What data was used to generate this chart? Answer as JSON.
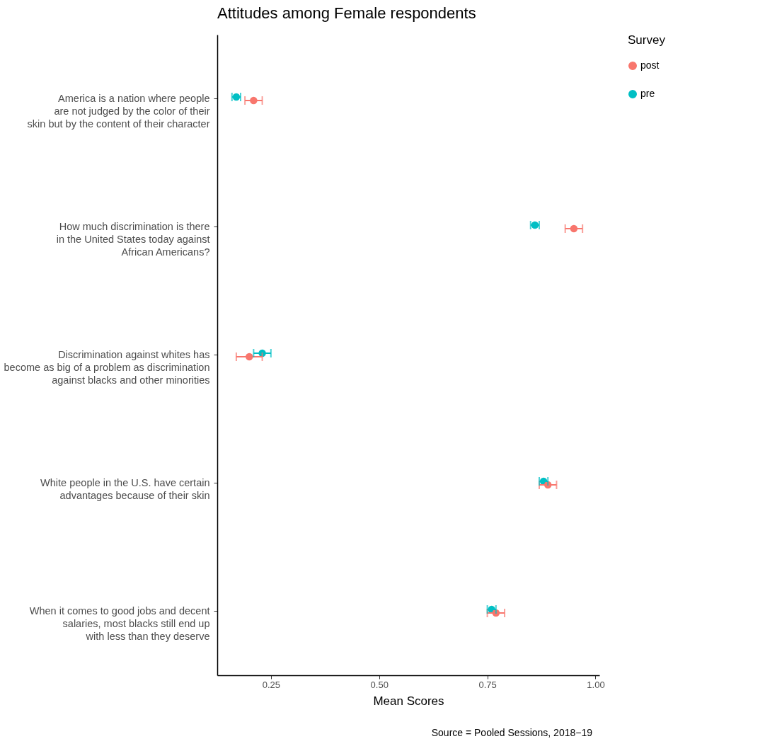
{
  "chart_data": {
    "type": "scatter",
    "orientation": "horizontal",
    "title": "Attitudes among Female respondents",
    "xlabel": "Mean Scores",
    "legend_title": "Survey",
    "legend": "right",
    "grid": false,
    "marker": "circle",
    "categories": [
      "America is a nation where people\nare not judged by the color of their\nskin but by the content of their character",
      "How much discrimination is there\nin the United States today against\nAfrican Americans?",
      "Discrimination against whites has\nbecome as big of a problem as discrimination\nagainst blacks and other minorities",
      "White people in the U.S. have certain\nadvantages because of their skin",
      "When it comes to good jobs and decent\nsalaries, most blacks still end up\nwith less than they deserve"
    ],
    "xlim": [
      0.126,
      1.009
    ],
    "xticks": [
      {
        "value": 0.25,
        "label": "0.25"
      },
      {
        "value": 0.5,
        "label": "0.50"
      },
      {
        "value": 0.75,
        "label": "0.75"
      },
      {
        "value": 1.0,
        "label": "1.00"
      }
    ],
    "series": [
      {
        "name": "post",
        "color": "#f8766d",
        "values": [
          0.21,
          0.95,
          0.2,
          0.89,
          0.77
        ],
        "errors": [
          0.02,
          0.02,
          0.03,
          0.02,
          0.02
        ]
      },
      {
        "name": "pre",
        "color": "#00bfc4",
        "values": [
          0.17,
          0.86,
          0.23,
          0.88,
          0.76
        ],
        "errors": [
          0.01,
          0.01,
          0.02,
          0.01,
          0.01
        ]
      }
    ],
    "annotations": [
      "Source = Pooled Sessions, 2018−19"
    ]
  }
}
